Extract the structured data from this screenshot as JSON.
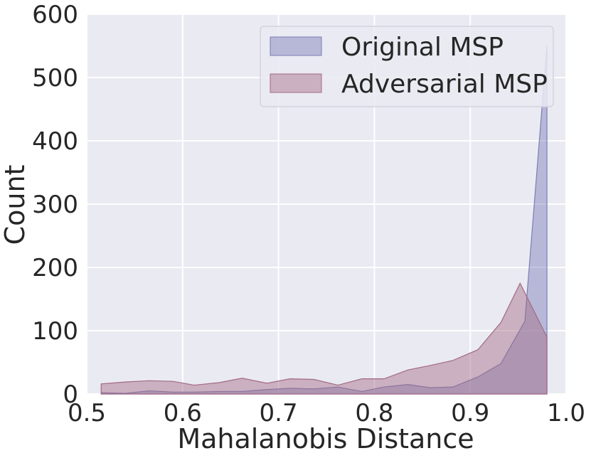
{
  "chart_data": {
    "type": "area",
    "xlabel": "Mahalanobis Distance",
    "ylabel": "Count",
    "xlim": [
      0.5,
      1.0
    ],
    "ylim": [
      0,
      600
    ],
    "xticks": [
      "0.5",
      "0.6",
      "0.7",
      "0.8",
      "0.9",
      "1.0"
    ],
    "yticks": [
      "0",
      "100",
      "200",
      "300",
      "400",
      "500",
      "600"
    ],
    "grid": true,
    "legend_position": "top-right",
    "background_color": "#eaeaf2",
    "series": [
      {
        "name": "Original MSP",
        "color": "#7b7db5",
        "x": [
          0.515,
          0.54,
          0.565,
          0.59,
          0.612,
          0.638,
          0.662,
          0.688,
          0.712,
          0.737,
          0.762,
          0.787,
          0.81,
          0.835,
          0.858,
          0.882,
          0.908,
          0.932,
          0.957,
          0.98
        ],
        "y": [
          2,
          1,
          5,
          3,
          3,
          4,
          4,
          7,
          9,
          8,
          11,
          4,
          11,
          15,
          10,
          11,
          27,
          48,
          115,
          550
        ]
      },
      {
        "name": "Adversarial MSP",
        "color": "#a36a83",
        "x": [
          0.515,
          0.54,
          0.565,
          0.59,
          0.612,
          0.638,
          0.662,
          0.688,
          0.712,
          0.737,
          0.762,
          0.787,
          0.81,
          0.835,
          0.858,
          0.882,
          0.908,
          0.932,
          0.952,
          0.98
        ],
        "y": [
          16,
          19,
          21,
          20,
          14,
          18,
          25,
          17,
          24,
          23,
          14,
          24,
          24,
          38,
          45,
          53,
          70,
          113,
          175,
          90
        ]
      }
    ]
  }
}
